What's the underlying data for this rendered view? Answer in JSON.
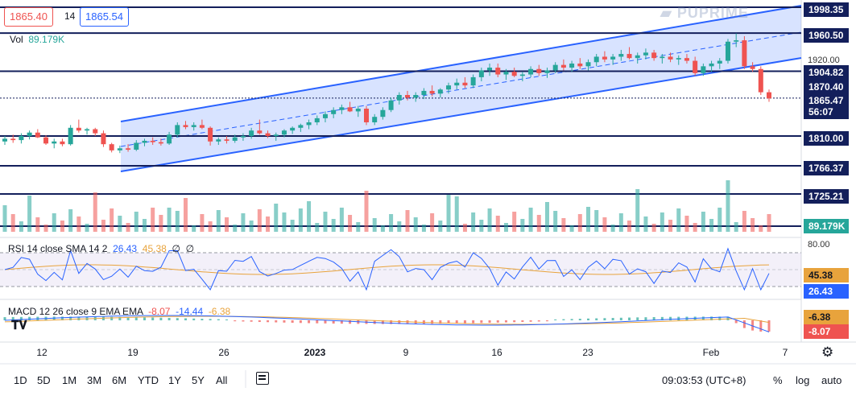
{
  "header": {
    "price_left": "1865.40",
    "interval": "14",
    "price_right": "1865.54",
    "vol_label": "Vol",
    "vol_value": "89.179K"
  },
  "watermark": {
    "brand": "PUPRIME"
  },
  "price_axis": {
    "labels": [
      {
        "text": "1998.35",
        "color": "#131f5b"
      },
      {
        "text": "1960.50",
        "color": "#131f5b"
      },
      {
        "text": "1904.82",
        "color": "#131f5b"
      },
      {
        "text": "1870.40",
        "color": "#131f5b"
      },
      {
        "text": "1865.47",
        "color": "#131f5b"
      },
      {
        "text": "56:07",
        "color": "#131f5b"
      },
      {
        "text": "1810.00",
        "color": "#131f5b"
      },
      {
        "text": "1766.37",
        "color": "#131f5b"
      },
      {
        "text": "1725.21",
        "color": "#131f5b"
      },
      {
        "text": "89.179K",
        "color": "#26a69a"
      },
      {
        "text": "45.38",
        "color": "#e8a33c"
      },
      {
        "text": "26.43",
        "color": "#2962ff"
      },
      {
        "text": "-6.38",
        "color": "#e8a33c"
      },
      {
        "text": "-8.07",
        "color": "#ef5350"
      }
    ],
    "ticks": {
      "price_1920": "1920.00",
      "rsi_80": "80.00"
    }
  },
  "rsi": {
    "label": "RSI 14 close SMA 14 2",
    "value": "26.43",
    "sma": "45.38",
    "extra1": "∅",
    "extra2": "∅"
  },
  "macd": {
    "label": "MACD 12 26 close 9 EMA EMA",
    "hist": "-8.07",
    "macd": "-14.44",
    "signal": "-6.38"
  },
  "x_axis": {
    "labels": [
      "12",
      "19",
      "26",
      "2023",
      "9",
      "16",
      "23",
      "Feb",
      "7"
    ]
  },
  "toolbar": {
    "ranges": [
      "1D",
      "5D",
      "1M",
      "3M",
      "6M",
      "YTD",
      "1Y",
      "5Y",
      "All"
    ],
    "time": "09:03:53 (UTC+8)",
    "percent": "%",
    "log": "log",
    "auto": "auto"
  },
  "icons": {
    "replay": "calendar-range-icon",
    "settings": "gear-icon",
    "logo": "tradingview-logo-icon"
  },
  "colors": {
    "up": "#26a69a",
    "down": "#ef5350",
    "level": "#131f5b",
    "channel": "#2962ff"
  },
  "chart_data": {
    "type": "candlestick",
    "instrument_levels": [
      1998.35,
      1960.5,
      1904.82,
      1870.4,
      1810.0,
      1766.37,
      1725.21
    ],
    "last_price": 1865.47,
    "countdown": "56:07",
    "candles": [
      [
        1802,
        1810,
        1797,
        1806
      ],
      [
        1806,
        1812,
        1800,
        1804
      ],
      [
        1804,
        1814,
        1799,
        1810
      ],
      [
        1810,
        1818,
        1805,
        1815
      ],
      [
        1815,
        1820,
        1807,
        1808
      ],
      [
        1808,
        1811,
        1797,
        1799
      ],
      [
        1799,
        1806,
        1792,
        1802
      ],
      [
        1802,
        1806,
        1795,
        1798
      ],
      [
        1798,
        1826,
        1796,
        1822
      ],
      [
        1822,
        1834,
        1815,
        1818
      ],
      [
        1818,
        1822,
        1812,
        1820
      ],
      [
        1820,
        1822,
        1810,
        1814
      ],
      [
        1814,
        1818,
        1794,
        1798
      ],
      [
        1798,
        1800,
        1786,
        1789
      ],
      [
        1789,
        1796,
        1785,
        1792
      ],
      [
        1792,
        1798,
        1787,
        1790
      ],
      [
        1790,
        1804,
        1788,
        1800
      ],
      [
        1800,
        1806,
        1795,
        1803
      ],
      [
        1803,
        1808,
        1797,
        1801
      ],
      [
        1801,
        1806,
        1796,
        1799
      ],
      [
        1799,
        1816,
        1797,
        1812
      ],
      [
        1812,
        1830,
        1808,
        1826
      ],
      [
        1826,
        1832,
        1820,
        1823
      ],
      [
        1823,
        1830,
        1818,
        1826
      ],
      [
        1826,
        1834,
        1820,
        1822
      ],
      [
        1822,
        1824,
        1796,
        1802
      ],
      [
        1802,
        1808,
        1797,
        1805
      ],
      [
        1805,
        1810,
        1799,
        1803
      ],
      [
        1803,
        1812,
        1800,
        1808
      ],
      [
        1808,
        1814,
        1803,
        1810
      ],
      [
        1810,
        1822,
        1806,
        1818
      ],
      [
        1818,
        1834,
        1812,
        1814
      ],
      [
        1814,
        1818,
        1807,
        1810
      ],
      [
        1810,
        1815,
        1803,
        1812
      ],
      [
        1812,
        1820,
        1808,
        1818
      ],
      [
        1818,
        1824,
        1813,
        1822
      ],
      [
        1822,
        1828,
        1816,
        1826
      ],
      [
        1826,
        1834,
        1820,
        1830
      ],
      [
        1830,
        1840,
        1826,
        1836
      ],
      [
        1836,
        1846,
        1830,
        1842
      ],
      [
        1842,
        1852,
        1836,
        1848
      ],
      [
        1848,
        1856,
        1842,
        1852
      ],
      [
        1852,
        1860,
        1845,
        1846
      ],
      [
        1846,
        1854,
        1838,
        1850
      ],
      [
        1850,
        1854,
        1826,
        1830
      ],
      [
        1830,
        1842,
        1826,
        1838
      ],
      [
        1838,
        1852,
        1834,
        1848
      ],
      [
        1848,
        1866,
        1845,
        1862
      ],
      [
        1862,
        1874,
        1856,
        1870
      ],
      [
        1870,
        1876,
        1862,
        1866
      ],
      [
        1866,
        1874,
        1860,
        1870
      ],
      [
        1870,
        1880,
        1864,
        1876
      ],
      [
        1876,
        1884,
        1868,
        1872
      ],
      [
        1872,
        1880,
        1866,
        1878
      ],
      [
        1878,
        1888,
        1872,
        1884
      ],
      [
        1884,
        1894,
        1878,
        1888
      ],
      [
        1888,
        1896,
        1880,
        1884
      ],
      [
        1884,
        1900,
        1880,
        1896
      ],
      [
        1896,
        1910,
        1890,
        1906
      ],
      [
        1906,
        1916,
        1898,
        1910
      ],
      [
        1910,
        1916,
        1896,
        1900
      ],
      [
        1900,
        1908,
        1892,
        1904
      ],
      [
        1904,
        1910,
        1896,
        1898
      ],
      [
        1898,
        1904,
        1890,
        1900
      ],
      [
        1900,
        1912,
        1896,
        1908
      ],
      [
        1908,
        1914,
        1898,
        1902
      ],
      [
        1902,
        1910,
        1895,
        1906
      ],
      [
        1906,
        1918,
        1902,
        1914
      ],
      [
        1914,
        1922,
        1906,
        1910
      ],
      [
        1910,
        1920,
        1904,
        1916
      ],
      [
        1916,
        1924,
        1908,
        1912
      ],
      [
        1912,
        1922,
        1906,
        1918
      ],
      [
        1918,
        1930,
        1912,
        1926
      ],
      [
        1926,
        1934,
        1918,
        1922
      ],
      [
        1922,
        1930,
        1914,
        1926
      ],
      [
        1926,
        1936,
        1920,
        1930
      ],
      [
        1930,
        1940,
        1922,
        1924
      ],
      [
        1924,
        1932,
        1916,
        1928
      ],
      [
        1928,
        1938,
        1922,
        1932
      ],
      [
        1932,
        1936,
        1920,
        1924
      ],
      [
        1924,
        1930,
        1916,
        1926
      ],
      [
        1926,
        1932,
        1918,
        1922
      ],
      [
        1922,
        1928,
        1914,
        1924
      ],
      [
        1924,
        1930,
        1916,
        1920
      ],
      [
        1920,
        1926,
        1898,
        1902
      ],
      [
        1902,
        1916,
        1898,
        1912
      ],
      [
        1912,
        1920,
        1904,
        1916
      ],
      [
        1916,
        1924,
        1908,
        1920
      ],
      [
        1920,
        1952,
        1916,
        1948
      ],
      [
        1948,
        1960,
        1940,
        1950
      ],
      [
        1950,
        1956,
        1908,
        1912
      ],
      [
        1912,
        1918,
        1904,
        1908
      ],
      [
        1908,
        1912,
        1870,
        1874
      ],
      [
        1874,
        1878,
        1860,
        1865
      ]
    ]
  }
}
